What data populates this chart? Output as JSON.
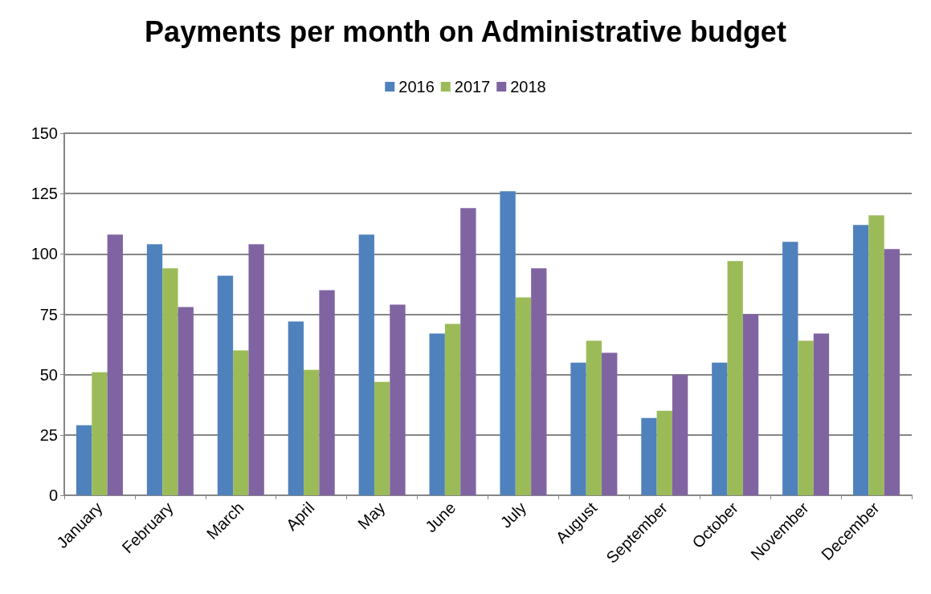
{
  "chart_data": {
    "type": "bar",
    "title": "Payments per month on Administrative budget",
    "categories": [
      "January",
      "February",
      "March",
      "April",
      "May",
      "June",
      "July",
      "August",
      "September",
      "October",
      "November",
      "December"
    ],
    "series": [
      {
        "name": "2016",
        "color": "#4f81bd",
        "values": [
          29,
          104,
          91,
          72,
          108,
          67,
          126,
          55,
          32,
          55,
          105,
          112
        ]
      },
      {
        "name": "2017",
        "color": "#9bbb59",
        "values": [
          51,
          94,
          60,
          52,
          47,
          71,
          82,
          64,
          35,
          97,
          64,
          116
        ]
      },
      {
        "name": "2018",
        "color": "#8064a2",
        "values": [
          108,
          78,
          104,
          85,
          79,
          119,
          94,
          59,
          50,
          75,
          67,
          102
        ]
      }
    ],
    "ylim": [
      0,
      150
    ],
    "yticks": [
      0,
      25,
      50,
      75,
      100,
      125,
      150
    ],
    "grid": "y",
    "legend": "top"
  }
}
